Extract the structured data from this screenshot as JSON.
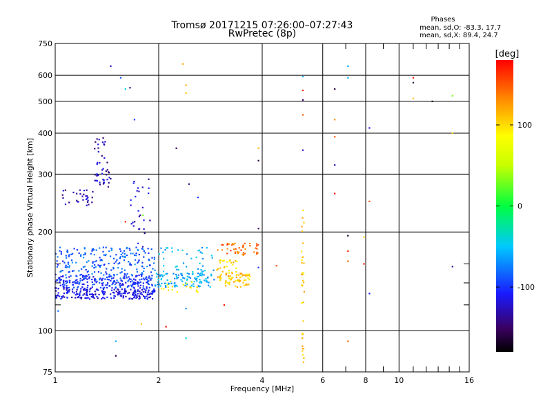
{
  "chart_data": {
    "type": "scatter",
    "title_line1": "Tromsø 20171215 07:26:00–07:27:43",
    "title_line2": "RwPretec (8p)",
    "xlabel": "Frequency [MHz]",
    "ylabel": "Stationary phase Virtual Height [km]",
    "x_scale": "log2",
    "y_scale": "log",
    "xlim": [
      1,
      16
    ],
    "ylim": [
      75,
      750
    ],
    "x_ticks": [
      1,
      2,
      4,
      6,
      8,
      10,
      16
    ],
    "y_ticks": [
      75,
      100,
      200,
      300,
      400,
      500,
      600,
      750
    ],
    "grid": true,
    "stats": {
      "title": "Phases",
      "line_O": "mean, sd,O: -83.3, 17.7",
      "line_X": "mean, sd,X:  89.4, 24.7"
    },
    "colorbar": {
      "label": "[deg]",
      "range": [
        -180,
        180
      ],
      "ticks": [
        100,
        0,
        -100
      ]
    },
    "clusters": [
      {
        "f0": 1.0,
        "f1": 1.95,
        "h0": 125,
        "h1": 135,
        "phase": -115,
        "n": 220
      },
      {
        "f0": 1.0,
        "f1": 1.95,
        "h0": 135,
        "h1": 148,
        "phase": -100,
        "n": 220
      },
      {
        "f0": 1.0,
        "f1": 1.95,
        "h0": 148,
        "h1": 180,
        "phase": -85,
        "n": 200
      },
      {
        "f0": 1.95,
        "f1": 2.9,
        "h0": 136,
        "h1": 150,
        "phase": -60,
        "n": 110
      },
      {
        "f0": 2.0,
        "f1": 2.9,
        "h0": 150,
        "h1": 180,
        "phase": -55,
        "n": 40
      },
      {
        "f0": 2.0,
        "f1": 2.6,
        "h0": 130,
        "h1": 142,
        "phase": 85,
        "n": 20
      },
      {
        "f0": 2.95,
        "f1": 3.7,
        "h0": 136,
        "h1": 150,
        "phase": 110,
        "n": 70
      },
      {
        "f0": 2.95,
        "f1": 3.4,
        "h0": 150,
        "h1": 165,
        "phase": 100,
        "n": 25
      },
      {
        "f0": 2.95,
        "f1": 3.9,
        "h0": 170,
        "h1": 185,
        "phase": 145,
        "n": 45
      },
      {
        "f0": 5.2,
        "f1": 5.3,
        "h0": 80,
        "h1": 235,
        "phase": 110,
        "n": 35
      },
      {
        "f0": 1.05,
        "f1": 1.3,
        "h0": 240,
        "h1": 270,
        "phase": -130,
        "n": 30
      },
      {
        "f0": 1.3,
        "f1": 1.45,
        "h0": 270,
        "h1": 390,
        "phase": -130,
        "n": 45
      },
      {
        "f0": 1.65,
        "f1": 1.9,
        "h0": 180,
        "h1": 290,
        "phase": -120,
        "n": 28
      }
    ],
    "points": [
      {
        "f": 1.45,
        "h": 640,
        "phase": -120
      },
      {
        "f": 1.55,
        "h": 590,
        "phase": -90
      },
      {
        "f": 1.6,
        "h": 545,
        "phase": -40
      },
      {
        "f": 1.65,
        "h": 550,
        "phase": -140
      },
      {
        "f": 1.7,
        "h": 440,
        "phase": -100
      },
      {
        "f": 2.35,
        "h": 650,
        "phase": 120
      },
      {
        "f": 2.4,
        "h": 560,
        "phase": 120
      },
      {
        "f": 2.4,
        "h": 530,
        "phase": 110
      },
      {
        "f": 2.25,
        "h": 360,
        "phase": -150
      },
      {
        "f": 2.45,
        "h": 280,
        "phase": -140
      },
      {
        "f": 2.6,
        "h": 255,
        "phase": -100
      },
      {
        "f": 3.9,
        "h": 360,
        "phase": 115
      },
      {
        "f": 3.9,
        "h": 330,
        "phase": -160
      },
      {
        "f": 3.9,
        "h": 205,
        "phase": -150
      },
      {
        "f": 3.9,
        "h": 156,
        "phase": -100
      },
      {
        "f": 4.4,
        "h": 158,
        "phase": 150
      },
      {
        "f": 5.25,
        "h": 595,
        "phase": -60
      },
      {
        "f": 5.25,
        "h": 540,
        "phase": 165
      },
      {
        "f": 5.25,
        "h": 505,
        "phase": -150
      },
      {
        "f": 5.25,
        "h": 455,
        "phase": 150
      },
      {
        "f": 5.25,
        "h": 355,
        "phase": -120
      },
      {
        "f": 6.5,
        "h": 545,
        "phase": -160
      },
      {
        "f": 6.5,
        "h": 440,
        "phase": 130
      },
      {
        "f": 6.5,
        "h": 390,
        "phase": 150
      },
      {
        "f": 6.5,
        "h": 320,
        "phase": -130
      },
      {
        "f": 6.5,
        "h": 262,
        "phase": 175
      },
      {
        "f": 7.1,
        "h": 640,
        "phase": -60
      },
      {
        "f": 7.1,
        "h": 590,
        "phase": -60
      },
      {
        "f": 7.1,
        "h": 195,
        "phase": -170
      },
      {
        "f": 7.1,
        "h": 175,
        "phase": 170
      },
      {
        "f": 7.1,
        "h": 163,
        "phase": 145
      },
      {
        "f": 7.1,
        "h": 93,
        "phase": 145
      },
      {
        "f": 7.9,
        "h": 193,
        "phase": 100
      },
      {
        "f": 7.9,
        "h": 160,
        "phase": 175
      },
      {
        "f": 8.2,
        "h": 415,
        "phase": -110
      },
      {
        "f": 8.2,
        "h": 248,
        "phase": 150
      },
      {
        "f": 8.2,
        "h": 130,
        "phase": -110
      },
      {
        "f": 11.0,
        "h": 590,
        "phase": 175
      },
      {
        "f": 11.0,
        "h": 570,
        "phase": -160
      },
      {
        "f": 11.0,
        "h": 510,
        "phase": 110
      },
      {
        "f": 12.5,
        "h": 500,
        "phase": -175
      },
      {
        "f": 14.3,
        "h": 520,
        "phase": 30
      },
      {
        "f": 14.3,
        "h": 400,
        "phase": 100
      },
      {
        "f": 14.3,
        "h": 157,
        "phase": -140
      },
      {
        "f": 1.5,
        "h": 93,
        "phase": -60
      },
      {
        "f": 1.5,
        "h": 84,
        "phase": -160
      },
      {
        "f": 2.1,
        "h": 103,
        "phase": 175
      },
      {
        "f": 2.4,
        "h": 95,
        "phase": -40
      },
      {
        "f": 2.4,
        "h": 117,
        "phase": -70
      },
      {
        "f": 1.78,
        "h": 105,
        "phase": 110
      },
      {
        "f": 3.1,
        "h": 120,
        "phase": 175
      },
      {
        "f": 1.02,
        "h": 115,
        "phase": -80
      },
      {
        "f": 1.8,
        "h": 225,
        "phase": 30
      },
      {
        "f": 1.6,
        "h": 215,
        "phase": 170
      }
    ]
  }
}
